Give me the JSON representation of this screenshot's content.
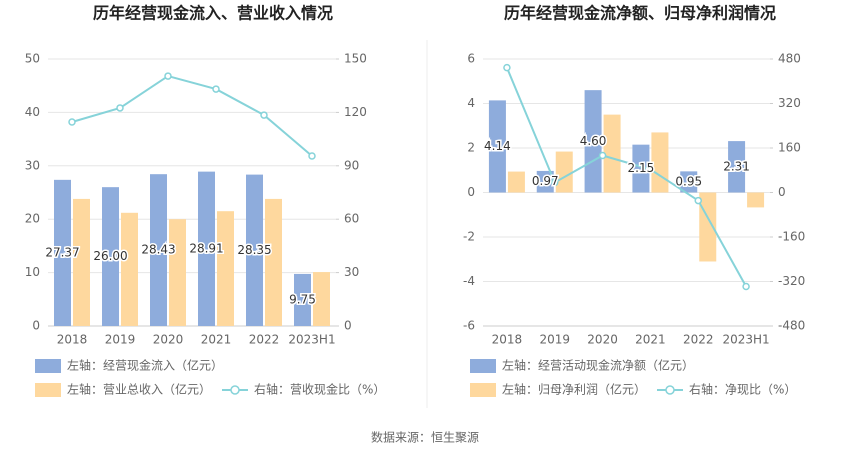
{
  "chart_data": [
    {
      "type": "bar",
      "title": "历年经营现金流入、营业收入情况",
      "categories": [
        "2018",
        "2019",
        "2020",
        "2021",
        "2022",
        "2023H1"
      ],
      "series": [
        {
          "name": "左轴：经营现金流入（亿元）",
          "type": "bar",
          "color": "#8eacdc",
          "values": [
            27.37,
            26.0,
            28.43,
            28.91,
            28.35,
            9.75
          ],
          "value_labels": [
            "27.37",
            "26.00",
            "28.43",
            "28.91",
            "28.35",
            "9.75"
          ]
        },
        {
          "name": "左轴：营业总收入（亿元）",
          "type": "bar",
          "color": "#fed89e",
          "values": [
            23.8,
            21.2,
            20.0,
            21.5,
            23.8,
            10.1
          ]
        },
        {
          "name": "右轴：营收现金比（%）",
          "type": "line",
          "axis": "y2",
          "color": "#86d3d9",
          "values": [
            114.6,
            122.5,
            140.4,
            133.1,
            118.5,
            95.5
          ]
        }
      ],
      "ylim": [
        0,
        50
      ],
      "yticks": [
        0,
        10,
        20,
        30,
        40,
        50
      ],
      "y2lim": [
        0,
        150
      ],
      "y2ticks": [
        0,
        30,
        60,
        90,
        120,
        150
      ],
      "grid": true
    },
    {
      "type": "bar",
      "title": "历年经营现金流净额、归母净利润情况",
      "categories": [
        "2018",
        "2019",
        "2020",
        "2021",
        "2022",
        "2023H1"
      ],
      "series": [
        {
          "name": "左轴：经营活动现金流净额（亿元）",
          "type": "bar",
          "color": "#8eacdc",
          "values": [
            4.14,
            0.97,
            4.6,
            2.15,
            0.95,
            2.31
          ],
          "value_labels": [
            "4.14",
            "0.97",
            "4.60",
            "2.15",
            "0.95",
            "2.31"
          ]
        },
        {
          "name": "左轴：归母净利润（亿元）",
          "type": "bar",
          "color": "#fed89e",
          "values": [
            0.94,
            1.84,
            3.5,
            2.7,
            -3.1,
            -0.67
          ]
        },
        {
          "name": "右轴：净现比（%）",
          "type": "line",
          "axis": "y2",
          "color": "#86d3d9",
          "values": [
            449,
            36,
            133,
            83,
            -29,
            -338
          ]
        }
      ],
      "ylim": [
        -6,
        6
      ],
      "yticks": [
        -6,
        -4,
        -2,
        0,
        2,
        4,
        6
      ],
      "y2lim": [
        -480,
        480
      ],
      "y2ticks": [
        -480,
        -320,
        -160,
        0,
        160,
        320,
        480
      ],
      "grid": true
    }
  ],
  "source": "数据来源：恒生聚源"
}
